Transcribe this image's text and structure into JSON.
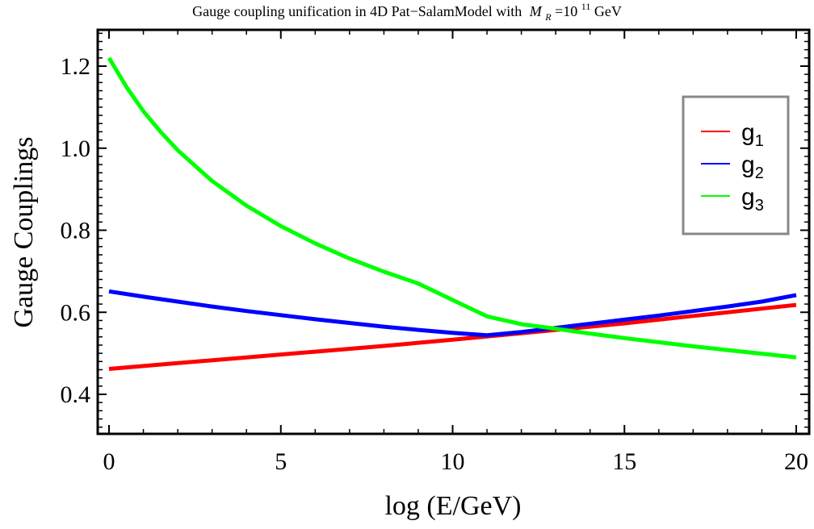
{
  "chart_data": {
    "type": "line",
    "title": "Gauge coupling unification in 4D Pat−SalamModel with",
    "title_symbol": "M",
    "title_symbol_sub": "R",
    "title_equals": "=10",
    "title_exponent": "11",
    "title_unit": " GeV",
    "xlabel": "log (E/GeV)",
    "ylabel": "Gauge Couplings",
    "xlim": [
      0,
      20
    ],
    "ylim": [
      0.3,
      1.3
    ],
    "x_ticks": [
      0,
      5,
      10,
      15,
      20
    ],
    "x_tick_labels": [
      "0",
      "5",
      "10",
      "15",
      "20"
    ],
    "y_ticks": [
      0.4,
      0.6,
      0.8,
      1.0,
      1.2
    ],
    "y_tick_labels": [
      "0.4",
      "0.6",
      "0.8",
      "1.0",
      "1.2"
    ],
    "grid": false,
    "legend_position": "top-right",
    "series": [
      {
        "name": "g",
        "subscript": "1",
        "color": "#ff0000",
        "x": [
          0,
          2,
          4,
          6,
          8,
          10,
          11,
          12,
          13,
          14,
          15,
          16,
          17,
          18,
          19,
          20
        ],
        "y": [
          0.462,
          0.476,
          0.49,
          0.504,
          0.518,
          0.533,
          0.541,
          0.549,
          0.557,
          0.565,
          0.573,
          0.582,
          0.591,
          0.6,
          0.609,
          0.618
        ]
      },
      {
        "name": "g",
        "subscript": "2",
        "color": "#0000ff",
        "x": [
          0,
          1,
          2,
          3,
          4,
          5,
          6,
          7,
          8,
          9,
          10,
          11,
          12,
          13,
          14,
          15,
          16,
          17,
          18,
          19,
          20
        ],
        "y": [
          0.651,
          0.638,
          0.626,
          0.614,
          0.603,
          0.593,
          0.583,
          0.574,
          0.565,
          0.557,
          0.55,
          0.544,
          0.552,
          0.562,
          0.572,
          0.582,
          0.592,
          0.603,
          0.614,
          0.626,
          0.642
        ]
      },
      {
        "name": "g",
        "subscript": "3",
        "color": "#00ff00",
        "x": [
          0,
          0.5,
          1,
          1.5,
          2,
          3,
          4,
          5,
          6,
          7,
          8,
          9,
          10,
          11,
          12,
          13,
          14,
          15,
          16,
          17,
          18,
          19,
          20
        ],
        "y": [
          1.22,
          1.15,
          1.09,
          1.04,
          0.995,
          0.92,
          0.86,
          0.81,
          0.768,
          0.731,
          0.699,
          0.67,
          0.63,
          0.59,
          0.571,
          0.56,
          0.548,
          0.537,
          0.527,
          0.517,
          0.508,
          0.499,
          0.49
        ]
      }
    ]
  }
}
